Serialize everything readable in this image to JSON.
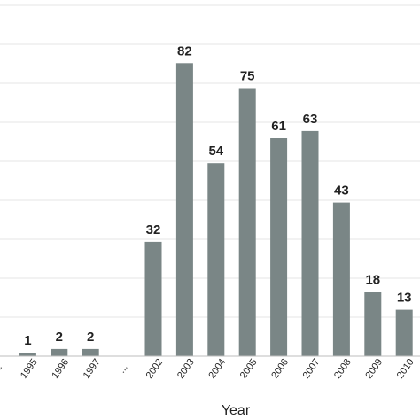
{
  "chart_data": {
    "type": "bar",
    "categories": [
      "...",
      "1995",
      "1996",
      "1997",
      "...",
      "2002",
      "2003",
      "2004",
      "2005",
      "2006",
      "2007",
      "2008",
      "2009",
      "2010"
    ],
    "values": [
      null,
      1,
      2,
      2,
      null,
      32,
      82,
      54,
      75,
      61,
      63,
      43,
      18,
      13
    ],
    "data_labels": [
      "",
      "1",
      "2",
      "2",
      "",
      "32",
      "82",
      "54",
      "75",
      "61",
      "63",
      "43",
      "18",
      "13"
    ],
    "title": "",
    "xlabel": "Year",
    "ylabel": "",
    "ylim": [
      0,
      90
    ],
    "grid": true,
    "colors": {
      "bar": "#7a8686"
    }
  }
}
